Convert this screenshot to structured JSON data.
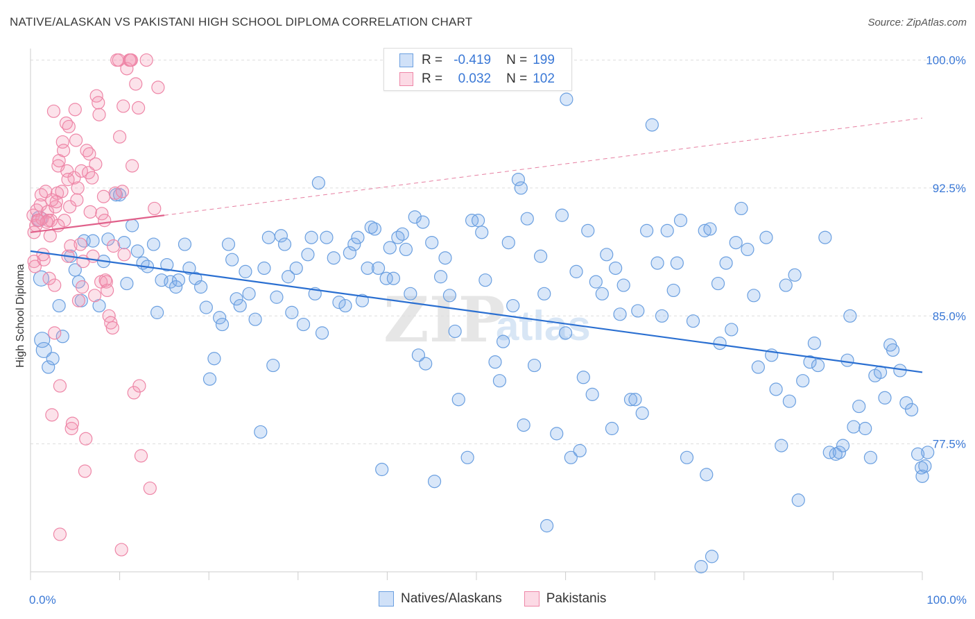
{
  "title": "NATIVE/ALASKAN VS PAKISTANI HIGH SCHOOL DIPLOMA CORRELATION CHART",
  "source": "Source: ZipAtlas.com",
  "watermark": "ZIPatlas",
  "colors": {
    "blue": "#6a9fe0",
    "blue_fill": "rgba(120,170,235,0.28)",
    "blue_line": "#2a6fd1",
    "pink": "#ee86a7",
    "pink_fill": "rgba(245,150,180,0.28)",
    "pink_line": "#e0608a",
    "axis_text": "#3a78d6",
    "grid": "#dddddd"
  },
  "legend": {
    "rows": [
      {
        "r_label": "R =",
        "r_value": "-0.419",
        "n_label": "N =",
        "n_value": "199"
      },
      {
        "r_label": "R =",
        "r_value": "0.032",
        "n_label": "N =",
        "n_value": "102"
      }
    ]
  },
  "bottom_legend": {
    "items": [
      {
        "label": "Natives/Alaskans"
      },
      {
        "label": "Pakistanis"
      }
    ]
  },
  "chart_data": {
    "type": "scatter",
    "xlabel": "",
    "ylabel": "High School Diploma",
    "xlim": [
      0,
      100
    ],
    "ylim": [
      70.0,
      101.0
    ],
    "x_tick_labels": [
      {
        "value": 0,
        "label": "0.0%"
      },
      {
        "value": 100,
        "label": "100.0%"
      }
    ],
    "y_ticks": [
      {
        "value": 100.0,
        "label": "100.0%"
      },
      {
        "value": 92.5,
        "label": "92.5%"
      },
      {
        "value": 85.0,
        "label": "85.0%"
      },
      {
        "value": 77.5,
        "label": "77.5%"
      }
    ],
    "grid": "horizontal dashed",
    "legend_position": "top-center",
    "series": [
      {
        "name": "Natives/Alaskans",
        "trend": {
          "x": [
            0,
            100
          ],
          "y": [
            88.8,
            81.7
          ]
        },
        "points": [
          [
            1,
            90.7
          ],
          [
            1.2,
            87.2
          ],
          [
            1.3,
            83.6
          ],
          [
            1.5,
            83.0
          ],
          [
            2,
            82.0
          ],
          [
            2.5,
            82.5
          ],
          [
            3.2,
            85.6
          ],
          [
            3.6,
            83.8
          ],
          [
            4.5,
            88.5
          ],
          [
            5,
            87.7
          ],
          [
            5.4,
            87.0
          ],
          [
            5.7,
            85.9
          ],
          [
            6,
            89.4
          ],
          [
            7,
            89.4
          ],
          [
            7.7,
            85.6
          ],
          [
            8.2,
            88.2
          ],
          [
            8.7,
            89.5
          ],
          [
            9.6,
            92.1
          ],
          [
            10,
            92.1
          ],
          [
            10.5,
            89.3
          ],
          [
            10.8,
            86.9
          ],
          [
            11.4,
            90.3
          ],
          [
            12,
            88.8
          ],
          [
            12.6,
            88.1
          ],
          [
            13.1,
            87.9
          ],
          [
            13.8,
            89.2
          ],
          [
            14.2,
            85.2
          ],
          [
            14.7,
            87.1
          ],
          [
            15.3,
            88.0
          ],
          [
            15.7,
            87.0
          ],
          [
            16.3,
            86.7
          ],
          [
            16.6,
            87.1
          ],
          [
            17.3,
            89.2
          ],
          [
            17.8,
            87.8
          ],
          [
            18.5,
            87.2
          ],
          [
            19.1,
            86.7
          ],
          [
            19.7,
            85.5
          ],
          [
            20.1,
            81.3
          ],
          [
            20.6,
            82.5
          ],
          [
            21.2,
            84.9
          ],
          [
            21.5,
            84.5
          ],
          [
            22.2,
            89.2
          ],
          [
            22.6,
            88.3
          ],
          [
            23.1,
            86.0
          ],
          [
            23.5,
            85.6
          ],
          [
            24.1,
            87.6
          ],
          [
            24.5,
            86.3
          ],
          [
            25.2,
            84.8
          ],
          [
            25.8,
            78.2
          ],
          [
            26.2,
            87.8
          ],
          [
            26.7,
            89.6
          ],
          [
            27.2,
            82.1
          ],
          [
            27.6,
            86.1
          ],
          [
            28.1,
            89.7
          ],
          [
            28.5,
            89.2
          ],
          [
            28.9,
            87.3
          ],
          [
            29.3,
            85.2
          ],
          [
            29.8,
            87.8
          ],
          [
            30.6,
            84.5
          ],
          [
            31.1,
            88.6
          ],
          [
            31.5,
            89.6
          ],
          [
            31.9,
            86.3
          ],
          [
            32.3,
            92.8
          ],
          [
            32.7,
            84.0
          ],
          [
            33.2,
            89.6
          ],
          [
            34,
            88.4
          ],
          [
            34.6,
            85.8
          ],
          [
            35.3,
            85.6
          ],
          [
            35.8,
            88.7
          ],
          [
            36.3,
            89.2
          ],
          [
            36.7,
            89.6
          ],
          [
            37.2,
            85.9
          ],
          [
            37.8,
            87.8
          ],
          [
            38.2,
            90.2
          ],
          [
            38.6,
            90.1
          ],
          [
            39,
            87.8
          ],
          [
            39.4,
            76.0
          ],
          [
            39.9,
            87.2
          ],
          [
            40.3,
            89.0
          ],
          [
            40.7,
            87.2
          ],
          [
            41.2,
            89.6
          ],
          [
            41.7,
            89.8
          ],
          [
            42.1,
            88.9
          ],
          [
            42.6,
            86.3
          ],
          [
            43.1,
            90.8
          ],
          [
            43.5,
            82.7
          ],
          [
            44,
            90.5
          ],
          [
            44.3,
            82.2
          ],
          [
            45,
            89.3
          ],
          [
            45.3,
            75.3
          ],
          [
            46,
            87.3
          ],
          [
            46.5,
            88.4
          ],
          [
            47,
            86.2
          ],
          [
            47.6,
            84.1
          ],
          [
            48,
            80.1
          ],
          [
            49,
            76.7
          ],
          [
            49.5,
            90.6
          ],
          [
            50.2,
            90.6
          ],
          [
            50.6,
            89.9
          ],
          [
            51,
            87.1
          ],
          [
            52.1,
            82.3
          ],
          [
            52.6,
            81.2
          ],
          [
            53,
            83.5
          ],
          [
            53.6,
            89.3
          ],
          [
            54.1,
            85.6
          ],
          [
            54.7,
            93.0
          ],
          [
            55,
            92.5
          ],
          [
            55.3,
            78.6
          ],
          [
            55.7,
            90.7
          ],
          [
            56.5,
            82.1
          ],
          [
            57.2,
            88.5
          ],
          [
            57.6,
            86.3
          ],
          [
            57.9,
            72.7
          ],
          [
            59,
            78.1
          ],
          [
            59.6,
            90.9
          ],
          [
            60,
            84.0
          ],
          [
            60.6,
            76.7
          ],
          [
            61.2,
            87.6
          ],
          [
            61.6,
            77.1
          ],
          [
            62,
            81.4
          ],
          [
            62.5,
            90.0
          ],
          [
            63,
            80.4
          ],
          [
            63.4,
            87.0
          ],
          [
            64.1,
            86.3
          ],
          [
            64.6,
            88.6
          ],
          [
            65.2,
            78.4
          ],
          [
            65.6,
            87.8
          ],
          [
            66.1,
            85.1
          ],
          [
            66.5,
            86.8
          ],
          [
            67.3,
            80.1
          ],
          [
            67.8,
            80.1
          ],
          [
            68.1,
            85.3
          ],
          [
            68.6,
            79.3
          ],
          [
            69.1,
            90.0
          ],
          [
            69.7,
            96.2
          ],
          [
            70.3,
            88.1
          ],
          [
            70.8,
            85.0
          ],
          [
            71.4,
            90.0
          ],
          [
            72.1,
            86.5
          ],
          [
            72.5,
            88.1
          ],
          [
            72.9,
            90.6
          ],
          [
            73.6,
            76.7
          ],
          [
            74.3,
            84.7
          ],
          [
            75.2,
            70.3
          ],
          [
            75.6,
            90.0
          ],
          [
            75.8,
            75.7
          ],
          [
            76.2,
            90.1
          ],
          [
            76.4,
            70.9
          ],
          [
            77.1,
            86.9
          ],
          [
            77.3,
            83.4
          ],
          [
            78,
            88.1
          ],
          [
            78.6,
            84.2
          ],
          [
            79.1,
            89.3
          ],
          [
            79.7,
            91.3
          ],
          [
            80.4,
            88.9
          ],
          [
            81.1,
            86.2
          ],
          [
            81.6,
            82.0
          ],
          [
            82.5,
            89.6
          ],
          [
            83.1,
            82.7
          ],
          [
            83.6,
            80.7
          ],
          [
            84.2,
            77.4
          ],
          [
            84.7,
            86.8
          ],
          [
            85.1,
            80.0
          ],
          [
            85.7,
            87.4
          ],
          [
            86.1,
            74.2
          ],
          [
            86.6,
            81.2
          ],
          [
            87.4,
            82.3
          ],
          [
            87.9,
            83.4
          ],
          [
            88.3,
            82.1
          ],
          [
            89.1,
            89.6
          ],
          [
            89.6,
            77.0
          ],
          [
            90.3,
            76.9
          ],
          [
            90.7,
            77.0
          ],
          [
            91.1,
            77.4
          ],
          [
            91.6,
            82.4
          ],
          [
            91.9,
            85.0
          ],
          [
            92.3,
            78.5
          ],
          [
            92.9,
            79.7
          ],
          [
            93.6,
            78.4
          ],
          [
            94.2,
            76.7
          ],
          [
            94.7,
            81.5
          ],
          [
            95.3,
            81.7
          ],
          [
            95.8,
            80.2
          ],
          [
            96.4,
            83.3
          ],
          [
            96.7,
            83.0
          ],
          [
            97.5,
            81.8
          ],
          [
            98.2,
            79.9
          ],
          [
            98.8,
            79.5
          ],
          [
            99.5,
            76.9
          ],
          [
            99.9,
            76.1
          ],
          [
            100,
            75.6
          ],
          [
            100.3,
            76.2
          ],
          [
            100.6,
            77.0
          ],
          [
            60.1,
            97.7
          ]
        ]
      },
      {
        "name": "Pakistanis",
        "trend": {
          "x": [
            0,
            15
          ],
          "y": [
            89.9,
            90.9
          ]
        },
        "trend_extended": {
          "x": [
            15,
            100
          ],
          "y": [
            90.9,
            96.6
          ]
        },
        "points": [
          [
            0.3,
            90.9
          ],
          [
            0.4,
            89.9
          ],
          [
            0.4,
            88.2
          ],
          [
            0.5,
            87.9
          ],
          [
            0.6,
            90.3
          ],
          [
            0.7,
            91.2
          ],
          [
            0.9,
            90.6
          ],
          [
            1.1,
            91.5
          ],
          [
            1.2,
            92.1
          ],
          [
            1.3,
            90.7
          ],
          [
            1.5,
            88.3
          ],
          [
            1.7,
            92.3
          ],
          [
            1.9,
            91.1
          ],
          [
            2,
            90.6
          ],
          [
            2.1,
            87.2
          ],
          [
            2.2,
            89.7
          ],
          [
            2.3,
            90.6
          ],
          [
            2.4,
            79.2
          ],
          [
            2.6,
            97.0
          ],
          [
            2.7,
            86.8
          ],
          [
            2.8,
            91.4
          ],
          [
            2.9,
            91.7
          ],
          [
            3,
            92.2
          ],
          [
            3.1,
            93.8
          ],
          [
            3.2,
            94.1
          ],
          [
            3.3,
            80.9
          ],
          [
            3.5,
            92.3
          ],
          [
            3.6,
            95.2
          ],
          [
            3.7,
            94.7
          ],
          [
            3.8,
            90.6
          ],
          [
            4,
            96.3
          ],
          [
            4.1,
            93.5
          ],
          [
            4.2,
            88.5
          ],
          [
            4.3,
            96.1
          ],
          [
            4.4,
            91.4
          ],
          [
            4.5,
            89.1
          ],
          [
            4.6,
            78.4
          ],
          [
            4.7,
            78.7
          ],
          [
            4.9,
            93.1
          ],
          [
            5,
            97.1
          ],
          [
            5.1,
            95.3
          ],
          [
            5.2,
            91.8
          ],
          [
            5.3,
            92.5
          ],
          [
            5.4,
            85.9
          ],
          [
            5.6,
            89.2
          ],
          [
            5.7,
            93.5
          ],
          [
            5.8,
            86.7
          ],
          [
            5.9,
            88.2
          ],
          [
            6.1,
            75.9
          ],
          [
            6.2,
            77.8
          ],
          [
            6.3,
            94.7
          ],
          [
            6.5,
            93.4
          ],
          [
            6.6,
            94.5
          ],
          [
            6.7,
            91.1
          ],
          [
            6.9,
            93.1
          ],
          [
            7,
            88.5
          ],
          [
            7.2,
            86.2
          ],
          [
            7.3,
            93.9
          ],
          [
            7.4,
            97.9
          ],
          [
            7.6,
            97.5
          ],
          [
            7.7,
            96.8
          ],
          [
            7.9,
            87.0
          ],
          [
            8,
            91.0
          ],
          [
            8.2,
            92.0
          ],
          [
            8.3,
            90.6
          ],
          [
            8.4,
            87.1
          ],
          [
            8.5,
            87.0
          ],
          [
            8.6,
            86.5
          ],
          [
            8.8,
            85.0
          ],
          [
            9,
            84.6
          ],
          [
            9.2,
            84.3
          ],
          [
            9.3,
            89.1
          ],
          [
            9.5,
            92.2
          ],
          [
            9.7,
            100.0
          ],
          [
            9.9,
            100.0
          ],
          [
            10,
            95.5
          ],
          [
            10.2,
            71.3
          ],
          [
            10.3,
            92.3
          ],
          [
            10.4,
            97.3
          ],
          [
            10.5,
            88.6
          ],
          [
            10.8,
            99.5
          ],
          [
            11.1,
            100.0
          ],
          [
            11.2,
            100.0
          ],
          [
            11.3,
            100.0
          ],
          [
            11.4,
            93.8
          ],
          [
            11.6,
            80.5
          ],
          [
            11.8,
            98.6
          ],
          [
            12.1,
            97.2
          ],
          [
            12.2,
            80.9
          ],
          [
            12.4,
            76.8
          ],
          [
            13,
            100.0
          ],
          [
            13.4,
            74.9
          ],
          [
            13.9,
            91.3
          ],
          [
            14.3,
            98.4
          ],
          [
            3.3,
            72.2
          ],
          [
            2.7,
            84.0
          ],
          [
            2.4,
            91.8
          ],
          [
            1.8,
            90.5
          ],
          [
            3.1,
            90.3
          ],
          [
            4.2,
            93.0
          ],
          [
            1.4,
            88.6
          ],
          [
            0.8,
            90.6
          ]
        ]
      }
    ]
  }
}
